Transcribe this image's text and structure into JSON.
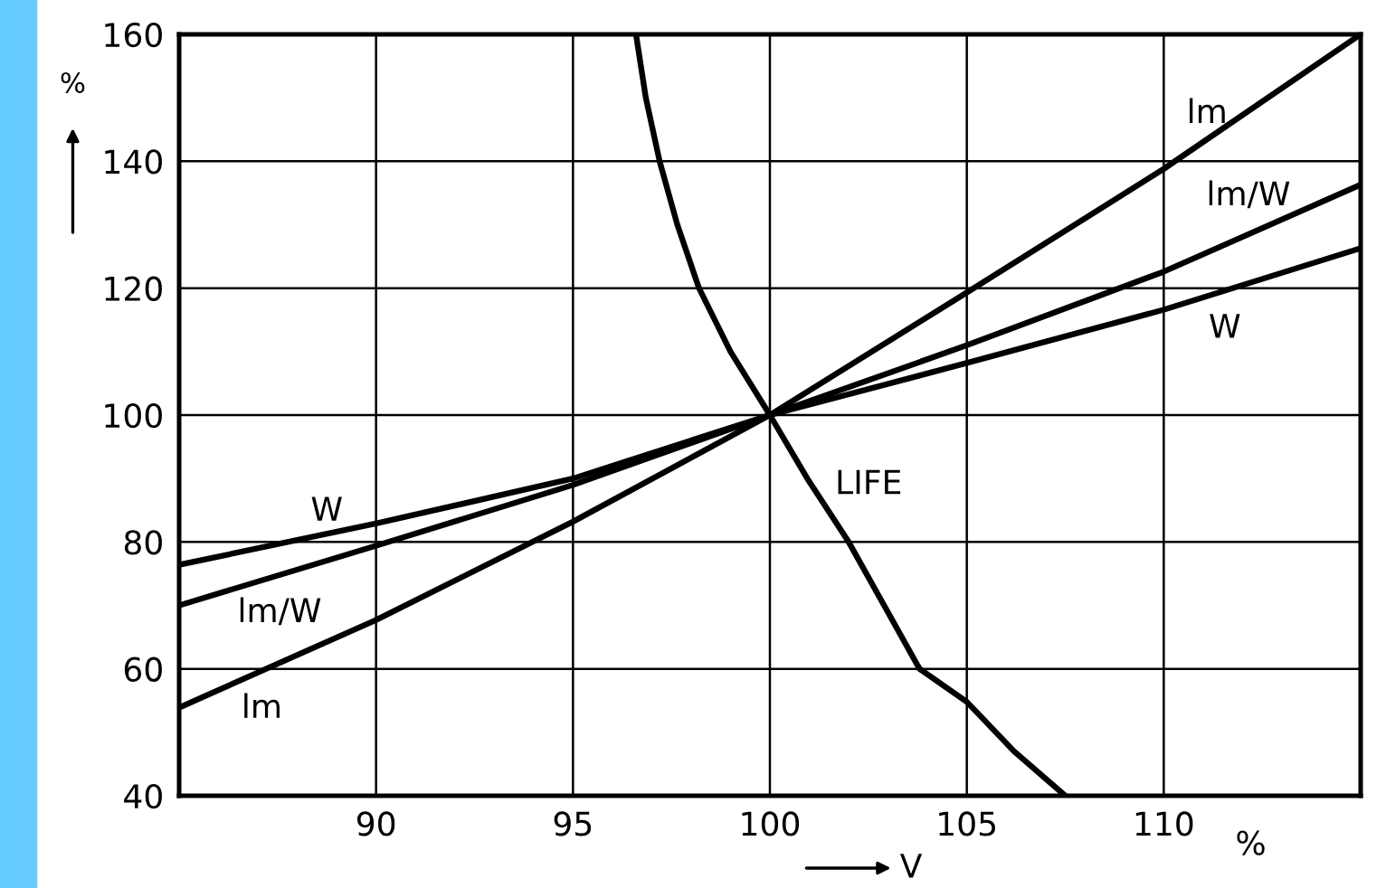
{
  "chart_data": {
    "type": "line",
    "xlabel": "V",
    "ylabel": "%",
    "xlim": [
      85,
      115
    ],
    "xticks": [
      90,
      95,
      100,
      105,
      110
    ],
    "ylim": [
      40,
      160
    ],
    "yticks": [
      40,
      60,
      80,
      100,
      120,
      140,
      160
    ],
    "grid": true,
    "marker": "none",
    "line_style": "solid",
    "series": [
      {
        "name": "W",
        "color": "#000000",
        "x": [
          85,
          90,
          95,
          100,
          105,
          110,
          115
        ],
        "values": [
          76.4,
          82.9,
          90.0,
          100,
          108.2,
          116.6,
          126.3
        ]
      },
      {
        "name": "lm/W",
        "color": "#000000",
        "x": [
          85,
          90,
          95,
          100,
          105,
          110,
          115
        ],
        "values": [
          70.0,
          79.4,
          89.0,
          100,
          111.0,
          122.6,
          136.3
        ]
      },
      {
        "name": "lm",
        "color": "#000000",
        "x": [
          85,
          90,
          95,
          100,
          105,
          110,
          115
        ],
        "values": [
          53.9,
          67.7,
          83.2,
          100,
          119.3,
          138.8,
          160
        ]
      },
      {
        "name": "LIFE",
        "color": "#000000",
        "x": [
          96.6,
          96.85,
          97.2,
          97.65,
          98.2,
          99.0,
          100,
          100.95,
          102.0,
          102.9,
          103.8,
          105,
          106.2,
          107.5
        ],
        "values": [
          160,
          150,
          140,
          130,
          120,
          110,
          100,
          90,
          80,
          70,
          60,
          54.8,
          47,
          40
        ]
      }
    ],
    "annotations": [
      "%"
    ]
  }
}
